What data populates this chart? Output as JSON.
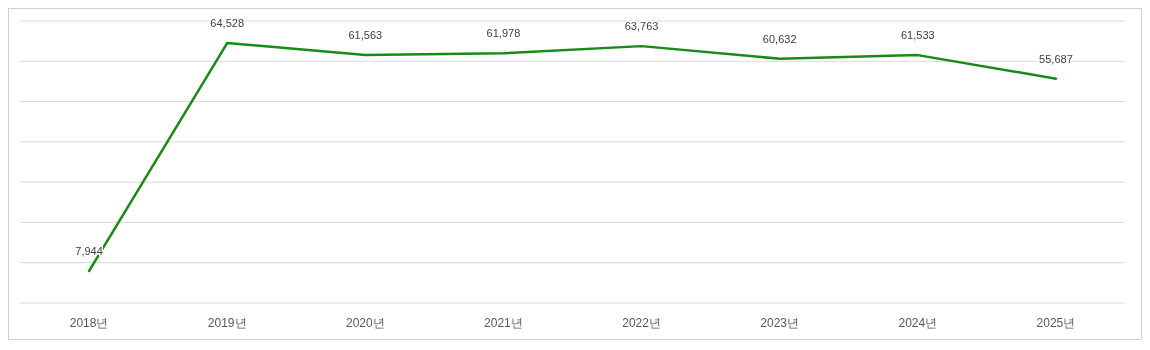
{
  "chart_data": {
    "type": "line",
    "categories": [
      "2018년",
      "2019년",
      "2020년",
      "2021년",
      "2022년",
      "2023년",
      "2024년",
      "2025년"
    ],
    "series": [
      {
        "color": "#178a17",
        "values": [
          7944,
          64528,
          61563,
          61978,
          63763,
          60632,
          61533,
          55687
        ],
        "value_labels": [
          "7,944",
          "64,528",
          "61,563",
          "61,978",
          "63,763",
          "60,632",
          "61,533",
          "55,687"
        ]
      }
    ],
    "tick_labels": "x",
    "grid": "y",
    "marker": "none",
    "line_style": "solid"
  }
}
